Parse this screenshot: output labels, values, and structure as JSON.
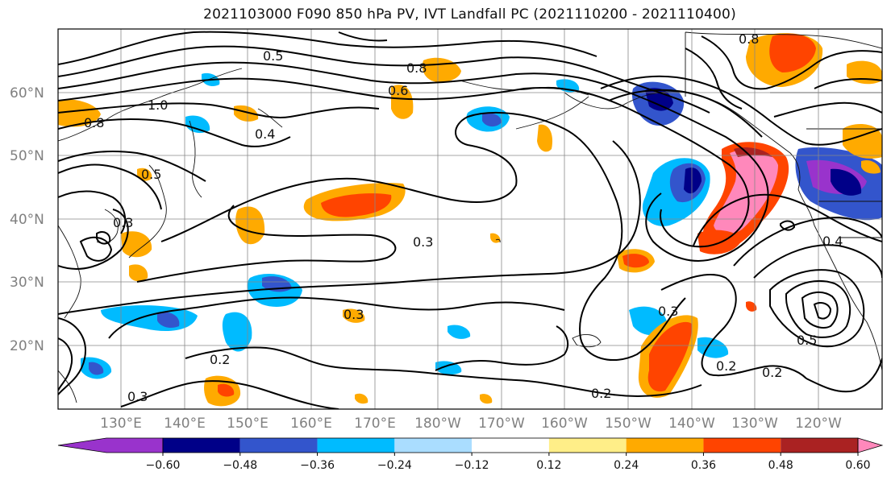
{
  "title": "2021103000 F090 850 hPa PV, IVT Landfall PC (2021110200 - 2021110400)",
  "latitude_labels": [
    "60°N",
    "50°N",
    "40°N",
    "30°N",
    "20°N"
  ],
  "longitude_labels": [
    "130°E",
    "140°E",
    "150°E",
    "160°E",
    "170°E",
    "180°W",
    "170°W",
    "160°W",
    "150°W",
    "140°W",
    "130°W",
    "120°W"
  ],
  "colorbar": {
    "tick_labels": [
      "−0.60",
      "−0.48",
      "−0.36",
      "−0.24",
      "−0.12",
      "0.12",
      "0.24",
      "0.36",
      "0.48",
      "0.60"
    ],
    "colors": [
      "#9933cc",
      "#000088",
      "#3355cc",
      "#00bbff",
      "#aaddff",
      "#ffffff",
      "#ffee88",
      "#ffaa00",
      "#ff4400",
      "#aa2222",
      "#ff88bb"
    ]
  },
  "contour_labels": [
    "0.3",
    "0.3",
    "0.3",
    "0.2",
    "0.2",
    "0.2",
    "0.2",
    "0.4",
    "0.4",
    "0.5",
    "0.5",
    "0.5",
    "0.6",
    "0.8",
    "0.8",
    "0.8",
    "1.0",
    "0.3",
    "0.3"
  ]
}
